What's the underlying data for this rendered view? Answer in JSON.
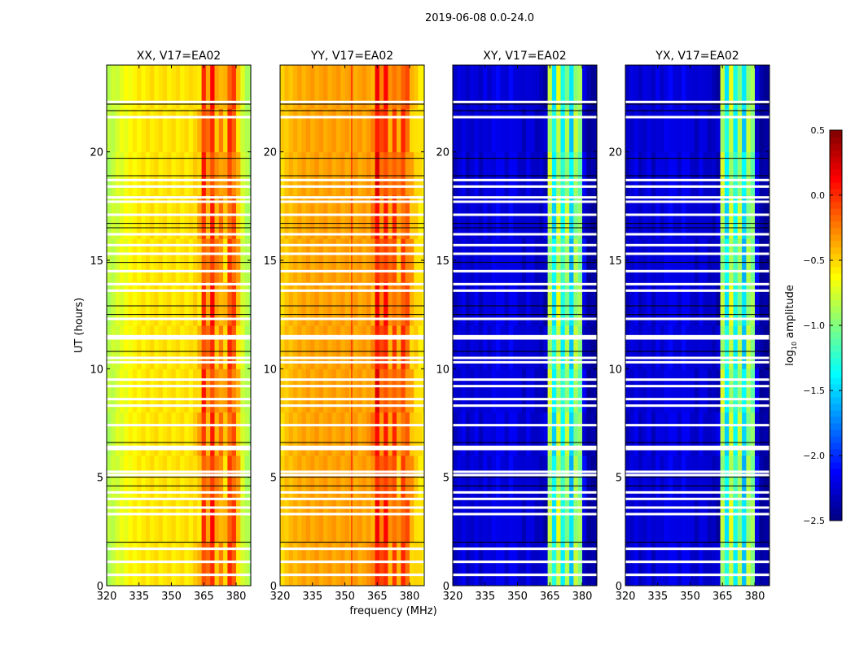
{
  "chart_data": {
    "type": "heatmap",
    "title": "2019-06-08 0.0-24.0",
    "xlabel": "frequency (MHz)",
    "ylabel": "UT (hours)",
    "xlim": [
      320,
      386.8
    ],
    "ylim": [
      0,
      24
    ],
    "xticks": [
      "320",
      "335",
      "350",
      "365",
      "380"
    ],
    "xtick_values": [
      320,
      335,
      350,
      365,
      380
    ],
    "yticks": [
      "0",
      "5",
      "10",
      "15",
      "20"
    ],
    "ytick_values": [
      0,
      5,
      10,
      15,
      20
    ],
    "frequencies": [
      320,
      322,
      324,
      326,
      328,
      330,
      332,
      334,
      336,
      338,
      340,
      342,
      344,
      346,
      348,
      350,
      352,
      354,
      356,
      358,
      360,
      362,
      364,
      366,
      368,
      370,
      372,
      374,
      376,
      378,
      380,
      382,
      384,
      386
    ],
    "panels": [
      {
        "title": "XX, V17=EA02",
        "log_amplitude": [
          -0.85,
          -0.8,
          -0.75,
          -0.7,
          -0.66,
          -0.62,
          -0.6,
          -0.58,
          -0.57,
          -0.56,
          -0.55,
          -0.55,
          -0.55,
          -0.55,
          -0.55,
          -0.55,
          -0.55,
          -0.55,
          -0.55,
          -0.55,
          -0.5,
          -0.45,
          -0.05,
          -0.3,
          0.0,
          -0.35,
          -0.3,
          -0.45,
          -0.1,
          -0.15,
          -0.45,
          -0.75,
          -0.85,
          -0.9
        ]
      },
      {
        "title": "YY, V17=EA02",
        "log_amplitude": [
          -0.5,
          -0.45,
          -0.42,
          -0.4,
          -0.38,
          -0.37,
          -0.36,
          -0.36,
          -0.35,
          -0.35,
          -0.35,
          -0.35,
          -0.35,
          -0.35,
          -0.35,
          -0.35,
          -0.35,
          -0.35,
          -0.35,
          -0.35,
          -0.33,
          -0.3,
          0.1,
          -0.2,
          0.0,
          -0.3,
          -0.1,
          -0.35,
          -0.1,
          -0.2,
          -0.4,
          -0.5,
          -0.55,
          -0.6
        ]
      },
      {
        "title": "XY, V17=EA02",
        "log_amplitude": [
          -2.3,
          -2.25,
          -2.2,
          -2.3,
          -2.25,
          -2.2,
          -2.3,
          -2.2,
          -2.25,
          -2.2,
          -2.15,
          -2.2,
          -2.25,
          -2.15,
          -2.2,
          -2.25,
          -2.3,
          -2.2,
          -2.25,
          -2.3,
          -2.3,
          -2.3,
          -0.85,
          -1.4,
          -0.8,
          -1.3,
          -0.9,
          -1.5,
          -0.9,
          -1.0,
          -2.2,
          -2.4,
          -2.4,
          -2.4
        ]
      },
      {
        "title": "YX, V17=EA02",
        "log_amplitude": [
          -2.3,
          -2.25,
          -2.2,
          -2.3,
          -2.25,
          -2.2,
          -2.3,
          -2.2,
          -2.25,
          -2.2,
          -2.15,
          -2.2,
          -2.25,
          -2.15,
          -2.2,
          -2.25,
          -2.3,
          -2.2,
          -2.25,
          -2.3,
          -2.3,
          -2.3,
          -0.85,
          -1.4,
          -0.8,
          -1.3,
          -0.9,
          -1.5,
          -0.9,
          -1.0,
          -2.2,
          -2.4,
          -2.4,
          -2.4
        ]
      }
    ],
    "flagged_hours_white": [
      0.5,
      1.1,
      1.7,
      3.3,
      3.6,
      4.0,
      4.3,
      5.1,
      5.25,
      6.3,
      6.4,
      7.4,
      8.3,
      8.6,
      9.2,
      9.5,
      10.3,
      10.5,
      11.4,
      11.5,
      12.3,
      13.6,
      13.9,
      14.5,
      15.3,
      15.7,
      16.2,
      17.1,
      17.7,
      17.9,
      18.4,
      18.7,
      21.6,
      22.3
    ],
    "flagged_hours_black": [
      2.0,
      4.6,
      5.0,
      6.6,
      10.8,
      12.5,
      12.9,
      14.9,
      16.5,
      16.7,
      18.9,
      19.7,
      21.9,
      22.2
    ],
    "colorbar": {
      "label": "log10 amplitude",
      "label_main": "log",
      "label_sub": "10",
      "label_rest": " amplitude",
      "range": [
        -2.5,
        0.5
      ],
      "ticks": [
        "0.5",
        "0.0",
        "−0.5",
        "−1.0",
        "−1.5",
        "−2.0",
        "−2.5"
      ],
      "tick_values": [
        0.5,
        0.0,
        -0.5,
        -1.0,
        -1.5,
        -2.0,
        -2.5
      ],
      "colormap": "jet"
    }
  }
}
